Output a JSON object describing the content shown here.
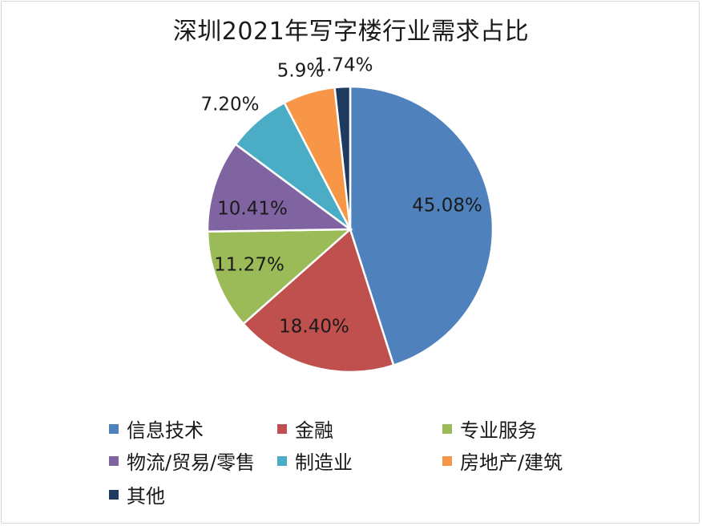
{
  "chart_data": {
    "type": "pie",
    "title": "深圳2021年写字楼行业需求占比",
    "categories": [
      "信息技术",
      "金融",
      "专业服务",
      "物流/贸易/零售",
      "制造业",
      "房地产/建筑",
      "其他"
    ],
    "values": [
      45.08,
      18.4,
      11.27,
      10.41,
      7.2,
      5.9,
      1.74
    ],
    "data_labels": [
      "45.08%",
      "18.40%",
      "11.27%",
      "10.41%",
      "7.20%",
      "5.9%",
      "1.74%"
    ],
    "colors": [
      "#4f81bd",
      "#c0504d",
      "#9bbb59",
      "#8064a2",
      "#4bacc6",
      "#f79646",
      "#1f3b60"
    ],
    "legend_position": "bottom",
    "start_angle": "12 o'clock",
    "direction": "clockwise"
  }
}
